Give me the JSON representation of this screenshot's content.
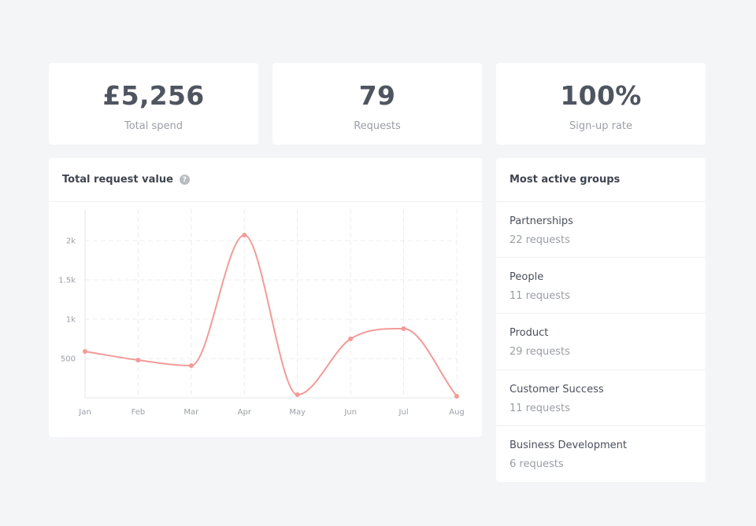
{
  "stats": [
    {
      "value": "£5,256",
      "label": "Total spend"
    },
    {
      "value": "79",
      "label": "Requests"
    },
    {
      "value": "100%",
      "label": "Sign-up rate"
    }
  ],
  "chart": {
    "title": "Total request value",
    "help_icon": "?"
  },
  "groups": {
    "title": "Most active groups",
    "items": [
      {
        "name": "Partnerships",
        "count": "22 requests"
      },
      {
        "name": "People",
        "count": "11 requests"
      },
      {
        "name": "Product",
        "count": "29 requests"
      },
      {
        "name": "Customer Success",
        "count": "11 requests"
      },
      {
        "name": "Business Development",
        "count": "6 requests"
      }
    ]
  },
  "colors": {
    "line": "#f29b98",
    "grid": "#ececee",
    "axis": "#e3e4e7"
  },
  "chart_data": {
    "type": "line",
    "title": "Total request value",
    "categories": [
      "Jan",
      "Feb",
      "Mar",
      "Apr",
      "May",
      "Jun",
      "Jul",
      "Aug"
    ],
    "values": [
      590,
      480,
      410,
      2070,
      40,
      750,
      880,
      20
    ],
    "yticks": [
      500,
      1000,
      1500,
      2000
    ],
    "ytick_labels": [
      "500",
      "1k",
      "1.5k",
      "2k"
    ],
    "ylim": [
      0,
      2400
    ],
    "xlabel": "",
    "ylabel": "",
    "grid": true,
    "legend": "none"
  }
}
